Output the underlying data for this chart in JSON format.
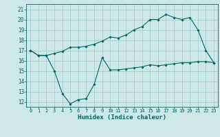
{
  "title": "",
  "xlabel": "Humidex (Indice chaleur)",
  "background_color": "#cce8e8",
  "grid_color": "#aacccc",
  "line_color": "#006666",
  "xlim": [
    -0.5,
    23.5
  ],
  "ylim": [
    11.5,
    21.5
  ],
  "yticks": [
    12,
    13,
    14,
    15,
    16,
    17,
    18,
    19,
    20,
    21
  ],
  "xticks": [
    0,
    1,
    2,
    3,
    4,
    5,
    6,
    7,
    8,
    9,
    10,
    11,
    12,
    13,
    14,
    15,
    16,
    17,
    18,
    19,
    20,
    21,
    22,
    23
  ],
  "line1_x": [
    0,
    1,
    2,
    3,
    4,
    5,
    6,
    7,
    8,
    9,
    10,
    11,
    12,
    13,
    14,
    15,
    16,
    17,
    18,
    19,
    20,
    21,
    22,
    23
  ],
  "line1_y": [
    17.0,
    16.5,
    16.5,
    16.7,
    16.9,
    17.3,
    17.3,
    17.4,
    17.6,
    17.9,
    18.3,
    18.2,
    18.5,
    19.0,
    19.3,
    20.0,
    20.0,
    20.5,
    20.2,
    20.0,
    20.2,
    19.0,
    17.0,
    15.8
  ],
  "line2_x": [
    0,
    1,
    2,
    3,
    4,
    5,
    6,
    7,
    8,
    9,
    10,
    11,
    12,
    13,
    14,
    15,
    16,
    17,
    18,
    19,
    20,
    21,
    22,
    23
  ],
  "line2_y": [
    17.0,
    16.5,
    16.5,
    15.0,
    12.8,
    11.8,
    12.2,
    12.3,
    13.7,
    16.3,
    15.1,
    15.1,
    15.2,
    15.3,
    15.4,
    15.6,
    15.5,
    15.6,
    15.7,
    15.8,
    15.8,
    15.9,
    15.9,
    15.8
  ]
}
